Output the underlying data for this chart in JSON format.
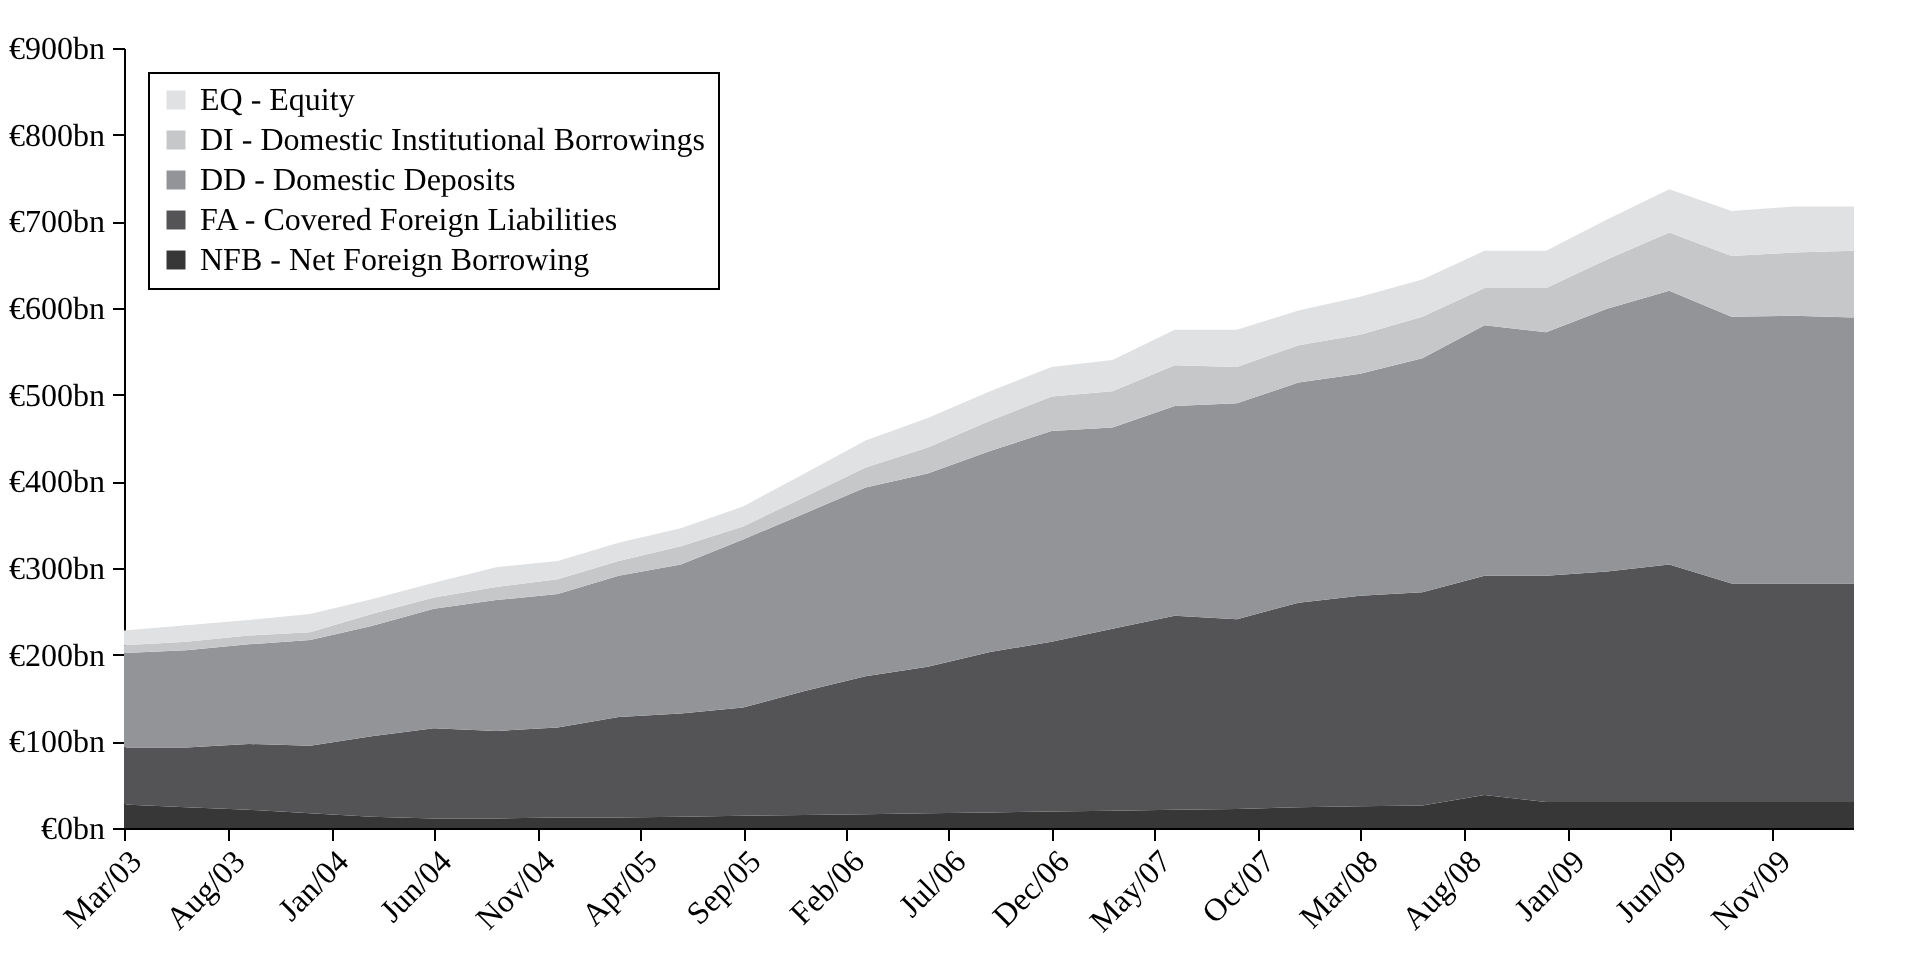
{
  "chart_data": {
    "type": "area",
    "stacked": true,
    "legend": "top left",
    "x": [
      "2003-03",
      "2003-06",
      "2003-09",
      "2003-12",
      "2004-03",
      "2004-06",
      "2004-09",
      "2004-12",
      "2005-03",
      "2005-06",
      "2005-09",
      "2005-12",
      "2006-03",
      "2006-06",
      "2006-09",
      "2006-12",
      "2007-03",
      "2007-06",
      "2007-09",
      "2007-12",
      "2008-03",
      "2008-06",
      "2008-09",
      "2008-12",
      "2009-03",
      "2009-06",
      "2009-09",
      "2009-12",
      "2010-03"
    ],
    "xlim": [
      "2003-03",
      "2010-03"
    ],
    "xticks": [
      {
        "value": "2003-03",
        "label": "Mar/03"
      },
      {
        "value": "2003-08",
        "label": "Aug/03"
      },
      {
        "value": "2004-01",
        "label": "Jan/04"
      },
      {
        "value": "2004-06",
        "label": "Jun/04"
      },
      {
        "value": "2004-11",
        "label": "Nov/04"
      },
      {
        "value": "2005-04",
        "label": "Apr/05"
      },
      {
        "value": "2005-09",
        "label": "Sep/05"
      },
      {
        "value": "2006-02",
        "label": "Feb/06"
      },
      {
        "value": "2006-07",
        "label": "Jul/06"
      },
      {
        "value": "2006-12",
        "label": "Dec/06"
      },
      {
        "value": "2007-05",
        "label": "May/07"
      },
      {
        "value": "2007-10",
        "label": "Oct/07"
      },
      {
        "value": "2008-03",
        "label": "Mar/08"
      },
      {
        "value": "2008-08",
        "label": "Aug/08"
      },
      {
        "value": "2009-01",
        "label": "Jan/09"
      },
      {
        "value": "2009-06",
        "label": "Jun/09"
      },
      {
        "value": "2009-11",
        "label": "Nov/09"
      }
    ],
    "ylim": [
      0,
      900
    ],
    "yticks": [
      {
        "value": 0,
        "label": "€0bn"
      },
      {
        "value": 100,
        "label": "€100bn"
      },
      {
        "value": 200,
        "label": "€200bn"
      },
      {
        "value": 300,
        "label": "€300bn"
      },
      {
        "value": 400,
        "label": "€400bn"
      },
      {
        "value": 500,
        "label": "€500bn"
      },
      {
        "value": 600,
        "label": "€600bn"
      },
      {
        "value": 700,
        "label": "€700bn"
      },
      {
        "value": 800,
        "label": "€800bn"
      },
      {
        "value": 900,
        "label": "€900bn"
      }
    ],
    "series": [
      {
        "name": "NFB - Net Foreign Borrowing",
        "color": "#373737",
        "values": [
          27,
          24,
          21,
          17,
          13,
          11,
          11,
          12,
          12,
          13,
          14,
          15,
          16,
          17,
          18,
          19,
          20,
          21,
          22,
          24,
          25,
          26,
          38,
          30,
          30,
          30,
          30,
          30,
          30
        ]
      },
      {
        "name": "FA - Covered Foreign Liabilities",
        "color": "#545456",
        "values": [
          66,
          69,
          76,
          78,
          93,
          104,
          101,
          104,
          116,
          119,
          125,
          143,
          159,
          169,
          185,
          196,
          210,
          224,
          219,
          236,
          243,
          246,
          253,
          261,
          266,
          274,
          252,
          252,
          252
        ]
      },
      {
        "name": "DD - Domestic Deposits",
        "color": "#939497",
        "values": [
          109,
          112,
          115,
          122,
          127,
          138,
          151,
          154,
          163,
          172,
          194,
          205,
          218,
          223,
          232,
          243,
          232,
          242,
          249,
          254,
          256,
          270,
          289,
          281,
          303,
          316,
          308,
          309,
          307
        ]
      },
      {
        "name": "DI - Domestic Institutional Borrowings",
        "color": "#c6c7c9",
        "values": [
          9,
          10,
          10,
          9,
          14,
          13,
          15,
          17,
          17,
          21,
          15,
          19,
          23,
          30,
          35,
          40,
          42,
          47,
          42,
          43,
          45,
          48,
          43,
          51,
          57,
          67,
          70,
          73,
          77
        ]
      },
      {
        "name": "EQ - Equity",
        "color": "#e0e1e3",
        "values": [
          17,
          19,
          18,
          21,
          17,
          17,
          23,
          21,
          21,
          21,
          23,
          27,
          31,
          34,
          34,
          34,
          36,
          41,
          43,
          40,
          44,
          43,
          43,
          43,
          46,
          50,
          52,
          53,
          51
        ]
      }
    ]
  }
}
